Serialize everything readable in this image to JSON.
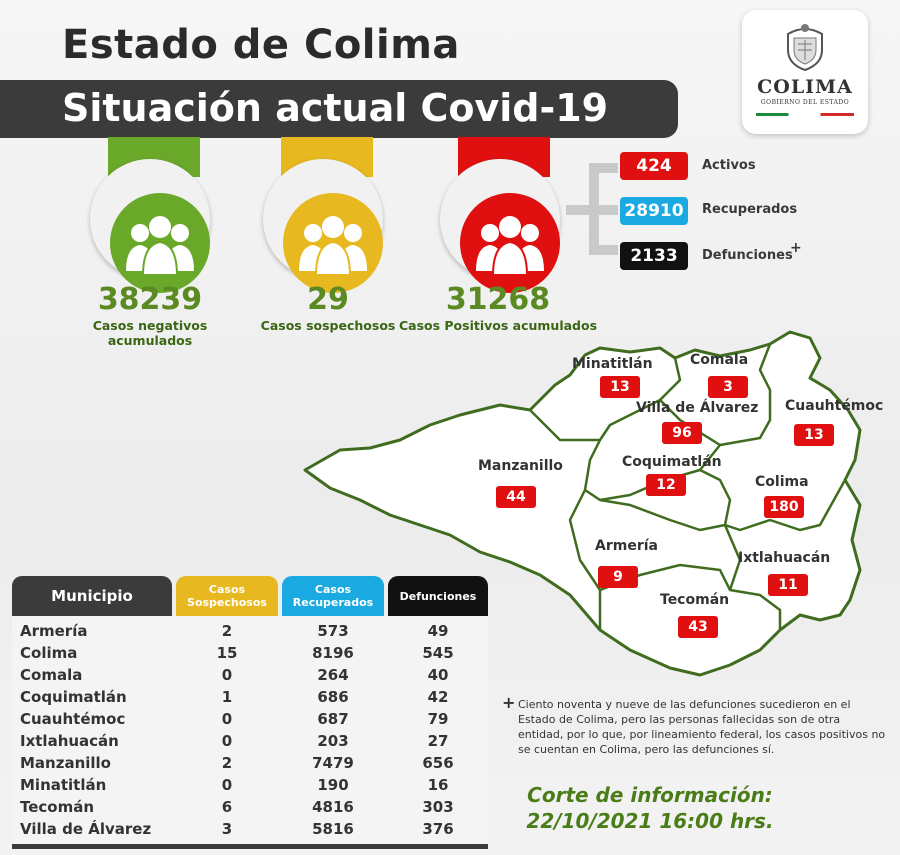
{
  "header": {
    "title": "Estado de Colima",
    "subtitle": "Situación actual Covid-19"
  },
  "logo": {
    "name": "COLIMA",
    "sub": "GOBIERNO DEL ESTADO"
  },
  "stats": [
    {
      "value": "38239",
      "label": "Casos negativos acumulados",
      "color": "#6aa82a",
      "icon": "people-group-icon"
    },
    {
      "value": "29",
      "label": "Casos sospechosos",
      "color": "#e8b820",
      "icon": "people-group-icon"
    },
    {
      "value": "31268",
      "label": "Casos Positivos acumulados",
      "color": "#e01010",
      "icon": "people-group-icon"
    }
  ],
  "positivos_breakdown": [
    {
      "value": "424",
      "label": "Activos",
      "color": "#e01010"
    },
    {
      "value": "28910",
      "label": "Recuperados",
      "color": "#1aa9e0"
    },
    {
      "value": "2133",
      "label": "Defunciones",
      "color": "#111111",
      "mark": "+"
    }
  ],
  "map": {
    "municipios": [
      {
        "name": "Minatitlán",
        "value": "13"
      },
      {
        "name": "Comala",
        "value": "3"
      },
      {
        "name": "Villa de Álvarez",
        "value": "96"
      },
      {
        "name": "Cuauhtémoc",
        "value": "13"
      },
      {
        "name": "Manzanillo",
        "value": "44"
      },
      {
        "name": "Coquimatlán",
        "value": "12"
      },
      {
        "name": "Colima",
        "value": "180"
      },
      {
        "name": "Armería",
        "value": "9"
      },
      {
        "name": "Ixtlahuacán",
        "value": "11"
      },
      {
        "name": "Tecomán",
        "value": "43"
      }
    ]
  },
  "table": {
    "headers": [
      "Municipio",
      "Casos Sospechosos",
      "Casos Recuperados",
      "Defunciones"
    ],
    "header_colors": [
      "#3b3b3b",
      "#e8b820",
      "#1aa9e0",
      "#111111"
    ],
    "rows": [
      [
        "Armería",
        "2",
        "573",
        "49"
      ],
      [
        "Colima",
        "15",
        "8196",
        "545"
      ],
      [
        "Comala",
        "0",
        "264",
        "40"
      ],
      [
        "Coquimatlán",
        "1",
        "686",
        "42"
      ],
      [
        "Cuauhtémoc",
        "0",
        "687",
        "79"
      ],
      [
        "Ixtlahuacán",
        "0",
        "203",
        "27"
      ],
      [
        "Manzanillo",
        "2",
        "7479",
        "656"
      ],
      [
        "Minatitlán",
        "0",
        "190",
        "16"
      ],
      [
        "Tecomán",
        "6",
        "4816",
        "303"
      ],
      [
        "Villa de Álvarez",
        "3",
        "5816",
        "376"
      ]
    ]
  },
  "note": {
    "mark": "+",
    "text": "Ciento noventa y nueve de las defunciones sucedieron en el Estado de Colima, pero las personas fallecidas son de otra entidad, por lo que, por lineamiento federal, los casos positivos no se cuentan en Colima, pero las defunciones sí."
  },
  "corte": {
    "label": "Corte de información:",
    "datetime": "22/10/2021 16:00 hrs."
  }
}
